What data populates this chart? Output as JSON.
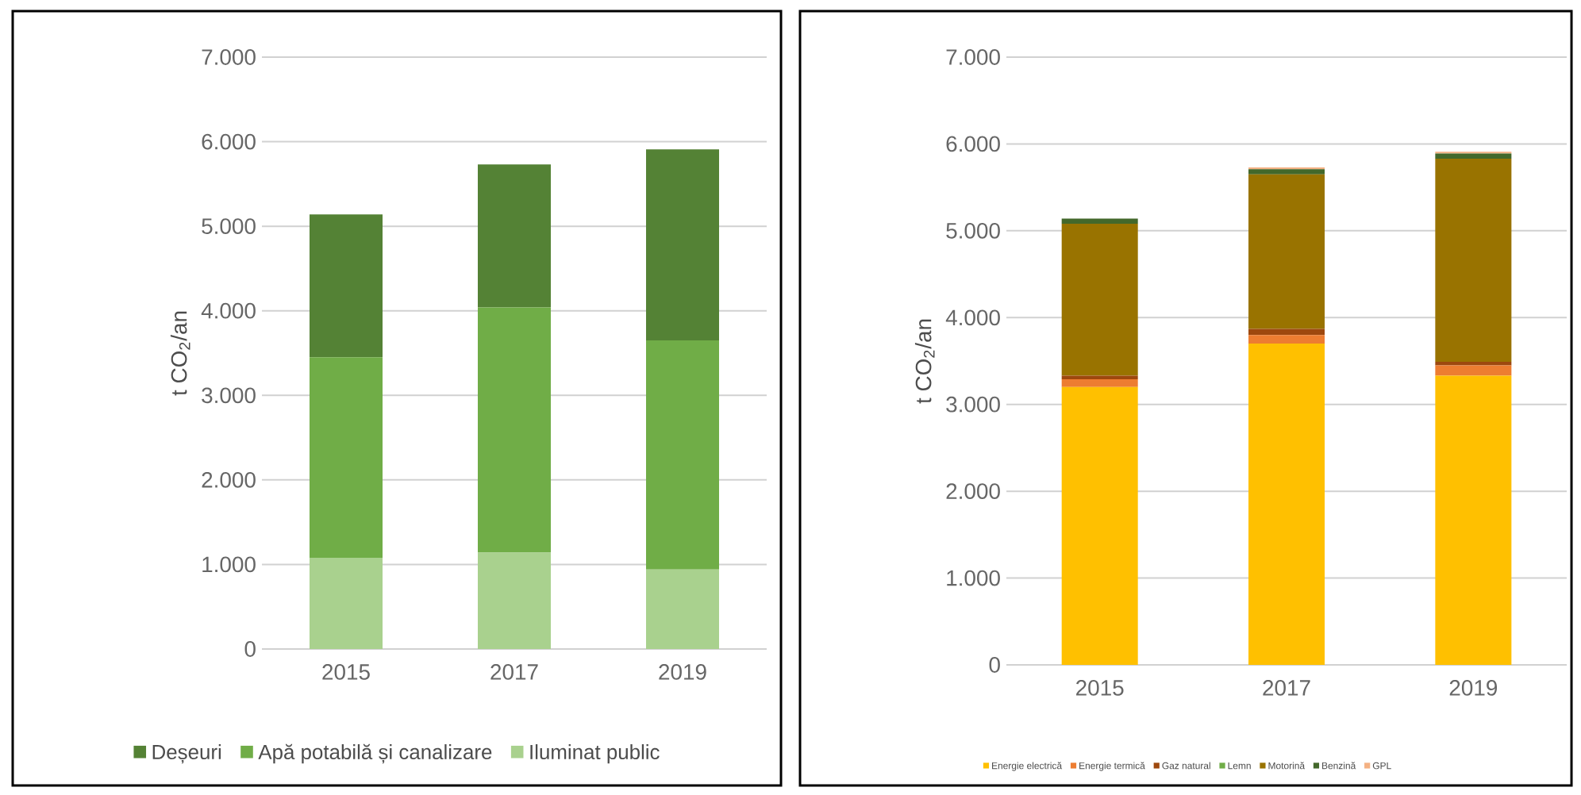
{
  "chart_data": [
    {
      "type": "bar",
      "stacked": true,
      "categories": [
        "2015",
        "2017",
        "2019"
      ],
      "ylabel": "t CO$_{2}$/an",
      "ylim": [
        0,
        7000
      ],
      "yticks": [
        0,
        {
          "value": 1000,
          "label": "1.000"
        },
        {
          "value": 2000,
          "label": "2.000"
        },
        {
          "value": 3000,
          "label": "3.000"
        },
        {
          "value": 4000,
          "label": "4.000"
        },
        {
          "value": 5000,
          "label": "5.000"
        },
        {
          "value": 6000,
          "label": "6.000"
        },
        {
          "value": 7000,
          "label": "7.000"
        }
      ],
      "grid": "y",
      "legend": "bottom",
      "series": [
        {
          "name": "Iluminat public",
          "color": "#a9d18e",
          "values": [
            1080,
            1140,
            940
          ]
        },
        {
          "name": "Apă potabilă și canalizare",
          "color": "#70ad47",
          "values": [
            2370,
            2900,
            2710
          ]
        },
        {
          "name": "Deșeuri",
          "color": "#548235",
          "values": [
            1690,
            1690,
            2260
          ]
        }
      ]
    },
    {
      "type": "bar",
      "stacked": true,
      "categories": [
        "2015",
        "2017",
        "2019"
      ],
      "ylabel": "t CO$_{2}$/an",
      "ylim": [
        0,
        7000
      ],
      "yticks": [
        0,
        {
          "value": 1000,
          "label": "1.000"
        },
        {
          "value": 2000,
          "label": "2.000"
        },
        {
          "value": 3000,
          "label": "3.000"
        },
        {
          "value": 4000,
          "label": "4.000"
        },
        {
          "value": 5000,
          "label": "5.000"
        },
        {
          "value": 6000,
          "label": "6.000"
        },
        {
          "value": 7000,
          "label": "7.000"
        }
      ],
      "grid": "y",
      "legend": "bottom",
      "series": [
        {
          "name": "Energie electrică",
          "color": "#ffc000",
          "values": [
            3200,
            3700,
            3330
          ]
        },
        {
          "name": "Energie termică",
          "color": "#ed7d31",
          "values": [
            90,
            100,
            120
          ]
        },
        {
          "name": "Gaz natural",
          "color": "#9e480e",
          "values": [
            40,
            70,
            40
          ]
        },
        {
          "name": "Lemn",
          "color": "#70ad47",
          "values": [
            0,
            0,
            0
          ]
        },
        {
          "name": "Motorină",
          "color": "#997300",
          "values": [
            1750,
            1780,
            2340
          ]
        },
        {
          "name": "Benzină",
          "color": "#43682b",
          "values": [
            60,
            60,
            60
          ]
        },
        {
          "name": "GPL",
          "color": "#f4b183",
          "values": [
            0,
            20,
            20
          ]
        }
      ]
    }
  ]
}
